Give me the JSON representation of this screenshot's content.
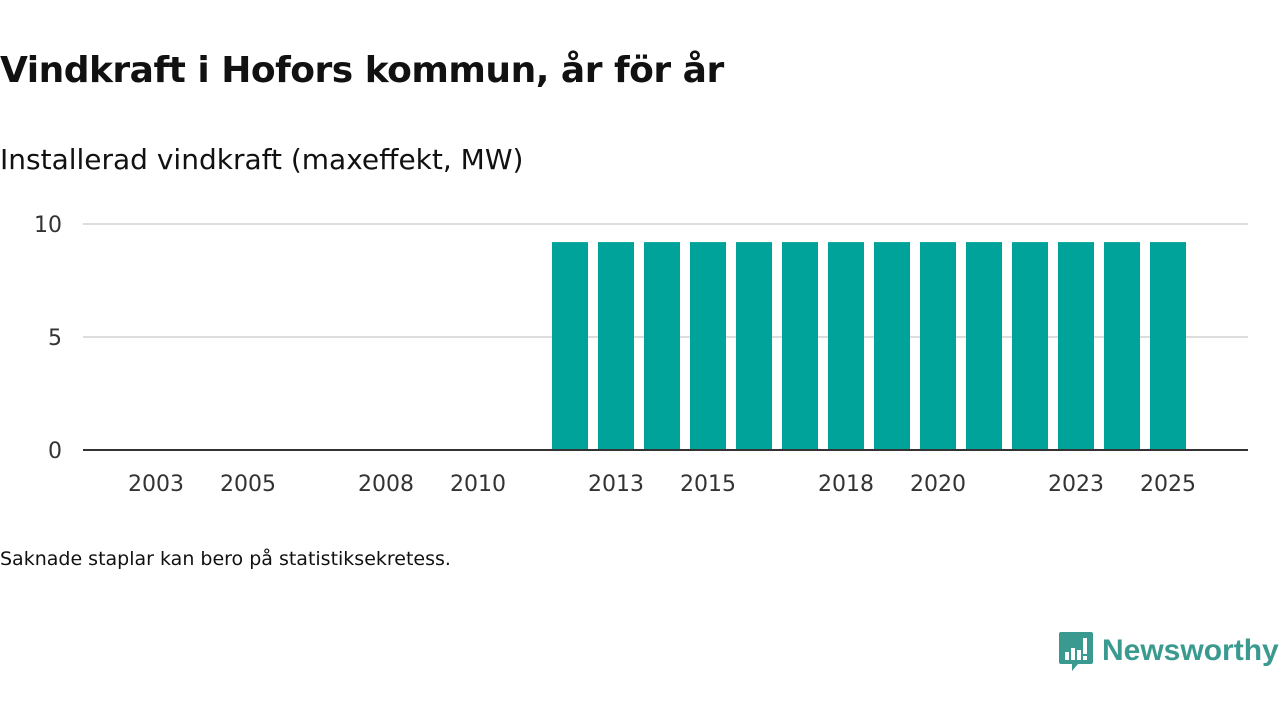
{
  "chart_data": {
    "type": "bar",
    "title": "Vindkraft i Hofors kommun, år för år",
    "subtitle": "Installerad vindkraft (maxeffekt, MW)",
    "categories": [
      2012,
      2013,
      2014,
      2015,
      2016,
      2017,
      2018,
      2019,
      2020,
      2021,
      2022,
      2023,
      2024,
      2025
    ],
    "values": [
      9.2,
      9.2,
      9.2,
      9.2,
      9.2,
      9.2,
      9.2,
      9.2,
      9.2,
      9.2,
      9.2,
      9.2,
      9.2,
      9.2
    ],
    "x_ticks": [
      "2003",
      "2005",
      "2008",
      "2010",
      "2013",
      "2015",
      "2018",
      "2020",
      "2023",
      "2025"
    ],
    "y_ticks": [
      "0",
      "5",
      "10"
    ],
    "ylim": [
      0,
      10
    ],
    "xlabel": "",
    "ylabel": "",
    "grid": true,
    "bar_color": "#00a39a"
  },
  "note": "Saknade staplar kan bero på statistiksekretess.",
  "logo": {
    "text": "Newsworthy",
    "color": "#3a9a90"
  }
}
